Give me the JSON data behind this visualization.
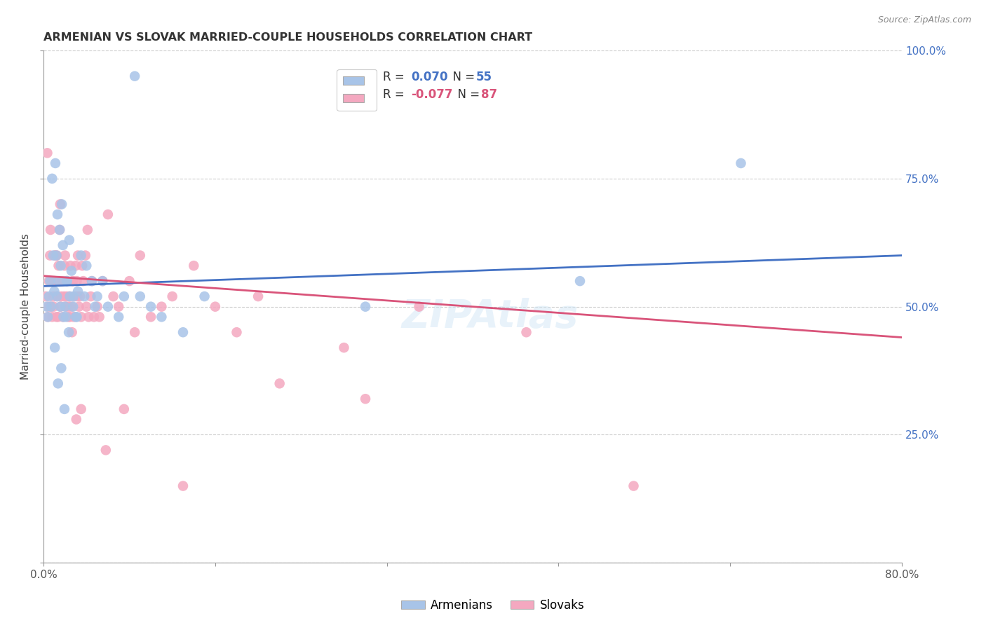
{
  "title": "ARMENIAN VS SLOVAK MARRIED-COUPLE HOUSEHOLDS CORRELATION CHART",
  "source": "Source: ZipAtlas.com",
  "ylabel": "Married-couple Households",
  "armenian_R": 0.07,
  "armenian_N": 55,
  "slovak_R": -0.077,
  "slovak_N": 87,
  "armenian_color": "#a8c4e8",
  "armenian_line_color": "#4472c4",
  "slovak_color": "#f4a8c0",
  "slovak_line_color": "#d9547a",
  "background_color": "#ffffff",
  "grid_color": "#c8c8c8",
  "legend_label_armenian": "Armenians",
  "legend_label_slovak": "Slovaks",
  "armenian_x": [
    0.5,
    0.8,
    1.0,
    1.1,
    1.2,
    1.3,
    1.4,
    1.5,
    1.6,
    1.7,
    1.8,
    2.0,
    2.1,
    2.2,
    2.4,
    2.6,
    2.8,
    3.0,
    3.2,
    3.5,
    4.0,
    4.5,
    5.0,
    6.0,
    7.0,
    8.5,
    9.0,
    10.0,
    11.0,
    13.0,
    15.0,
    0.3,
    0.6,
    0.9,
    1.25,
    1.55,
    1.85,
    2.15,
    2.45,
    2.75,
    3.1,
    3.8,
    4.8,
    5.5,
    7.5,
    30.0,
    50.0,
    65.0,
    0.4,
    0.7,
    1.05,
    1.35,
    1.65,
    1.95,
    2.35
  ],
  "armenian_y": [
    52.0,
    75.0,
    53.0,
    78.0,
    60.0,
    68.0,
    55.0,
    65.0,
    58.0,
    70.0,
    62.0,
    50.0,
    48.0,
    55.0,
    63.0,
    57.0,
    52.0,
    48.0,
    53.0,
    60.0,
    58.0,
    55.0,
    52.0,
    50.0,
    48.0,
    95.0,
    52.0,
    50.0,
    48.0,
    45.0,
    52.0,
    50.0,
    55.0,
    60.0,
    52.0,
    50.0,
    48.0,
    55.0,
    52.0,
    50.0,
    48.0,
    52.0,
    50.0,
    55.0,
    52.0,
    50.0,
    55.0,
    78.0,
    48.0,
    50.0,
    42.0,
    35.0,
    38.0,
    30.0,
    45.0
  ],
  "slovak_x": [
    0.2,
    0.4,
    0.5,
    0.6,
    0.7,
    0.8,
    0.9,
    1.0,
    1.1,
    1.2,
    1.3,
    1.4,
    1.5,
    1.6,
    1.7,
    1.8,
    1.9,
    2.0,
    2.1,
    2.2,
    2.3,
    2.4,
    2.5,
    2.6,
    2.7,
    2.8,
    2.9,
    3.0,
    3.1,
    3.2,
    3.3,
    3.4,
    3.5,
    3.7,
    3.9,
    4.1,
    4.4,
    4.7,
    5.0,
    5.5,
    6.0,
    7.0,
    8.0,
    9.0,
    10.0,
    12.0,
    14.0,
    16.0,
    18.0,
    20.0,
    0.35,
    0.65,
    0.95,
    1.25,
    1.55,
    1.85,
    2.15,
    2.45,
    2.75,
    3.15,
    3.6,
    4.0,
    4.5,
    5.2,
    6.5,
    8.5,
    11.0,
    22.0,
    28.0,
    35.0,
    45.0,
    55.0,
    0.45,
    0.75,
    1.05,
    1.35,
    1.65,
    1.95,
    2.35,
    2.65,
    3.05,
    3.5,
    4.2,
    5.8,
    7.5,
    13.0,
    30.0
  ],
  "slovak_y": [
    52.0,
    48.0,
    55.0,
    60.0,
    50.0,
    48.0,
    52.0,
    55.0,
    60.0,
    48.0,
    52.0,
    58.0,
    65.0,
    50.0,
    55.0,
    48.0,
    52.0,
    60.0,
    50.0,
    55.0,
    48.0,
    52.0,
    58.0,
    50.0,
    55.0,
    48.0,
    52.0,
    58.0,
    55.0,
    60.0,
    50.0,
    52.0,
    48.0,
    55.0,
    60.0,
    65.0,
    52.0,
    48.0,
    50.0,
    55.0,
    68.0,
    50.0,
    55.0,
    60.0,
    48.0,
    52.0,
    58.0,
    50.0,
    45.0,
    52.0,
    80.0,
    65.0,
    50.0,
    60.0,
    70.0,
    55.0,
    52.0,
    48.0,
    55.0,
    52.0,
    58.0,
    50.0,
    55.0,
    48.0,
    52.0,
    45.0,
    50.0,
    35.0,
    42.0,
    50.0,
    45.0,
    15.0,
    50.0,
    55.0,
    60.0,
    48.0,
    52.0,
    58.0,
    50.0,
    45.0,
    28.0,
    30.0,
    48.0,
    22.0,
    30.0,
    15.0,
    32.0
  ]
}
